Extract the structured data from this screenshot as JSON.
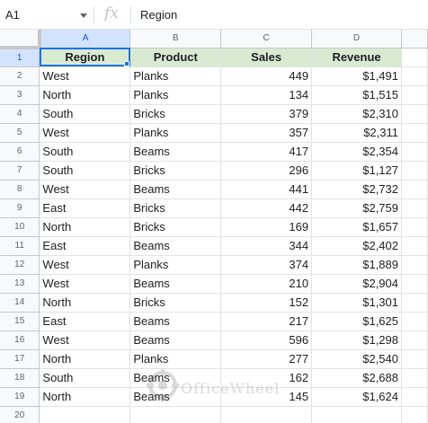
{
  "formula_bar": {
    "name_box": "A1",
    "fx": "fx",
    "content": "Region"
  },
  "columns": [
    "A",
    "B",
    "C",
    "D"
  ],
  "header_row": {
    "row": "1",
    "cells": [
      "Region",
      "Product",
      "Sales",
      "Revenue"
    ]
  },
  "rows": [
    {
      "n": "2",
      "region": "West",
      "product": "Planks",
      "sales": "449",
      "revenue": "$1,491"
    },
    {
      "n": "3",
      "region": "North",
      "product": "Planks",
      "sales": "134",
      "revenue": "$1,515"
    },
    {
      "n": "4",
      "region": "South",
      "product": "Bricks",
      "sales": "379",
      "revenue": "$2,310"
    },
    {
      "n": "5",
      "region": "West",
      "product": "Planks",
      "sales": "357",
      "revenue": "$2,311"
    },
    {
      "n": "6",
      "region": "South",
      "product": "Beams",
      "sales": "417",
      "revenue": "$2,354"
    },
    {
      "n": "7",
      "region": "South",
      "product": "Bricks",
      "sales": "296",
      "revenue": "$1,127"
    },
    {
      "n": "8",
      "region": "West",
      "product": "Beams",
      "sales": "441",
      "revenue": "$2,732"
    },
    {
      "n": "9",
      "region": "East",
      "product": "Bricks",
      "sales": "442",
      "revenue": "$2,759"
    },
    {
      "n": "10",
      "region": "North",
      "product": "Bricks",
      "sales": "169",
      "revenue": "$1,657"
    },
    {
      "n": "11",
      "region": "East",
      "product": "Beams",
      "sales": "344",
      "revenue": "$2,402"
    },
    {
      "n": "12",
      "region": "West",
      "product": "Planks",
      "sales": "374",
      "revenue": "$1,889"
    },
    {
      "n": "13",
      "region": "West",
      "product": "Beams",
      "sales": "210",
      "revenue": "$2,904"
    },
    {
      "n": "14",
      "region": "North",
      "product": "Bricks",
      "sales": "152",
      "revenue": "$1,301"
    },
    {
      "n": "15",
      "region": "East",
      "product": "Beams",
      "sales": "217",
      "revenue": "$1,625"
    },
    {
      "n": "16",
      "region": "West",
      "product": "Beams",
      "sales": "596",
      "revenue": "$1,298"
    },
    {
      "n": "17",
      "region": "North",
      "product": "Planks",
      "sales": "277",
      "revenue": "$2,540"
    },
    {
      "n": "18",
      "region": "South",
      "product": "Beams",
      "sales": "162",
      "revenue": "$2,688"
    },
    {
      "n": "19",
      "region": "North",
      "product": "Beams",
      "sales": "145",
      "revenue": "$1,624"
    }
  ],
  "empty_row": "20",
  "watermark": "OfficeWheel",
  "colors": {
    "header_fill": "#d9ead3",
    "selection": "#1a73e8",
    "header_selected": "#d3e3fd"
  }
}
